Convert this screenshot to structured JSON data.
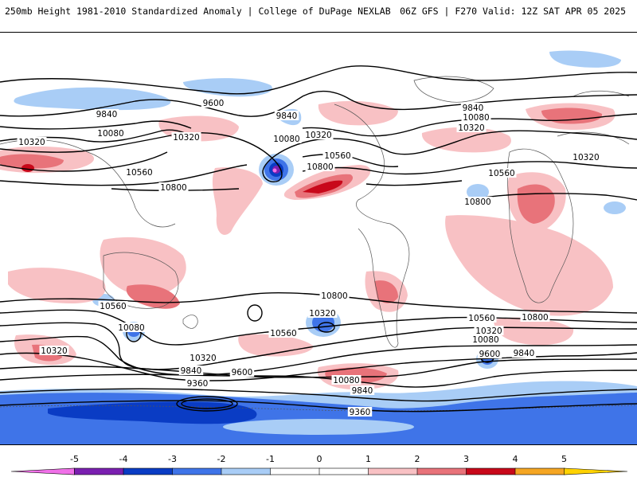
{
  "header": {
    "left_title": "250mb Height 1981-2010 Standardized Anomaly | College of DuPage NEXLAB",
    "right_title": "06Z GFS | F270 Valid: 12Z SAT APR 05 2025"
  },
  "map": {
    "contour_labels": [
      "9600",
      "9840",
      "9840",
      "10080",
      "10320",
      "10560",
      "10800",
      "10080",
      "10320",
      "10560",
      "10800",
      "10320",
      "9840",
      "10080",
      "10320",
      "10560",
      "10320",
      "10560",
      "10800",
      "10800",
      "10320",
      "10560",
      "10080",
      "10320",
      "10560",
      "10320",
      "9840",
      "9600",
      "10800",
      "10560",
      "10320",
      "10080",
      "9600",
      "9840",
      "9360",
      "10080",
      "9840",
      "9360"
    ]
  },
  "colorbar": {
    "ticks": [
      "-5",
      "-4",
      "-3",
      "-2",
      "-1",
      "0",
      "1",
      "2",
      "3",
      "4",
      "5"
    ],
    "colors": [
      "#f070e8",
      "#7a1fb0",
      "#0a3cc4",
      "#3f74e8",
      "#a9cdf6",
      "#ffffff",
      "#ffffff",
      "#f8c1c4",
      "#e8737a",
      "#c8081a",
      "#f5a623",
      "#ffd200"
    ]
  }
}
